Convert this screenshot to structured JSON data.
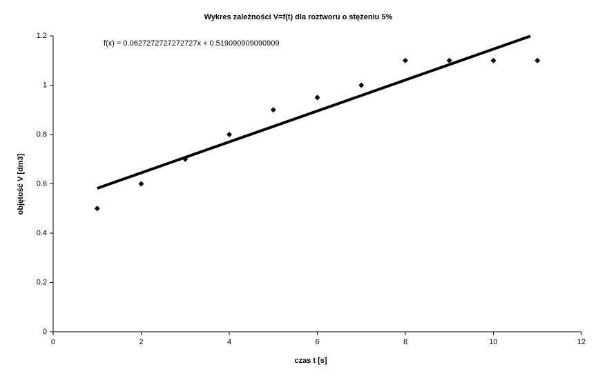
{
  "chart_data": {
    "type": "scatter",
    "title": "Wykres zależności V=f(t) dla roztworu o stężeniu 5%",
    "x_label": "czas t [s]",
    "y_label": "objętość V [dm3]",
    "x": [
      1,
      2,
      3,
      4,
      5,
      6,
      7,
      8,
      9,
      10,
      11
    ],
    "series": [
      {
        "color": "#000000",
        "values": [
          0.5,
          0.6,
          0.7,
          0.8,
          0.9,
          0.95,
          1.0,
          1.1,
          1.1,
          1.1,
          1.1
        ]
      }
    ],
    "trendline": {
      "equation": "f(x) = 0.0627272727272727x + 0.519090909090909",
      "slope": 0.0627272727272727,
      "intercept": 0.519090909090909,
      "xlim": [
        1,
        10.84
      ],
      "color": "#000000"
    },
    "xlim": [
      0,
      12
    ],
    "xticks": [
      0,
      2,
      4,
      6,
      8,
      10,
      12
    ],
    "ylim": [
      0,
      1.2
    ],
    "yticks": [
      0,
      0.2,
      0.4,
      0.6,
      0.8,
      1,
      1.2
    ],
    "grid": false
  }
}
